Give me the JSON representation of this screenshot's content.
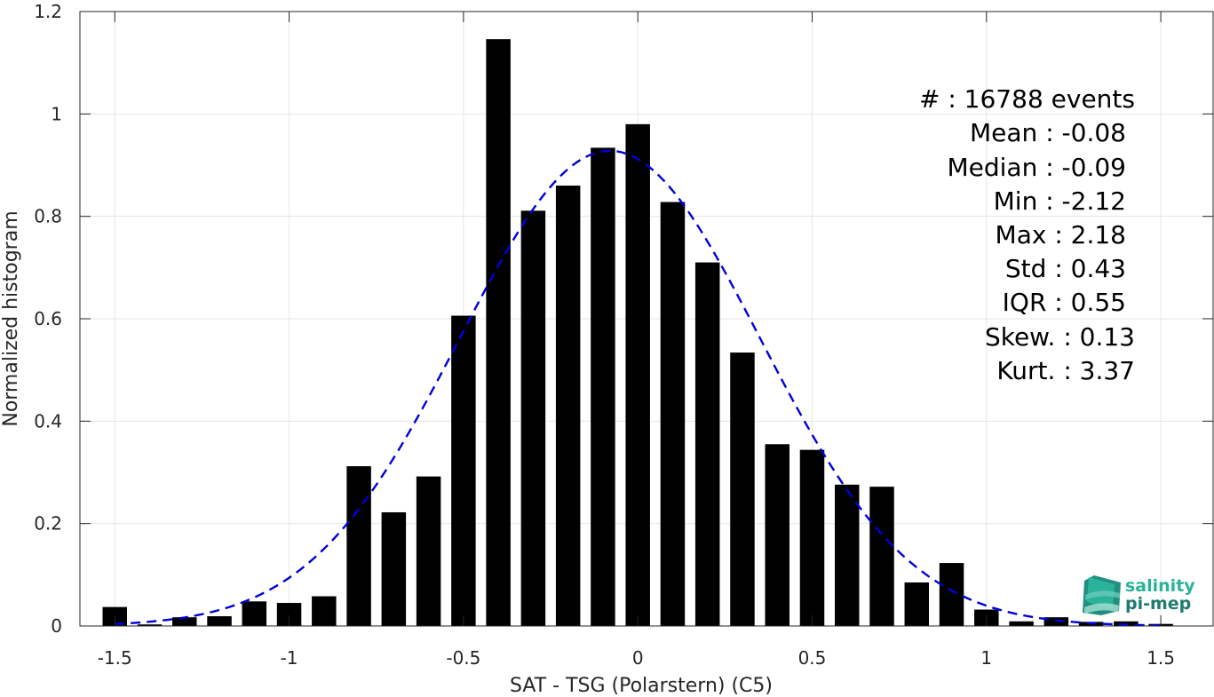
{
  "chart_data": {
    "type": "bar",
    "xlabel": "SAT - TSG (Polarstern) (C5)",
    "ylabel": "Normalized histogram",
    "xlim": [
      -1.6,
      1.65
    ],
    "ylim": [
      0,
      1.2
    ],
    "xticks": [
      -1.5,
      -1,
      -0.5,
      0,
      0.5,
      1,
      1.5
    ],
    "xtick_labels": [
      "-1.5",
      "-1",
      "-0.5",
      "0",
      "0.5",
      "1",
      "1.5"
    ],
    "yticks": [
      0,
      0.2,
      0.4,
      0.6,
      0.8,
      1,
      1.2
    ],
    "ytick_labels": [
      "0",
      "0.2",
      "0.4",
      "0.6",
      "0.8",
      "1",
      "1.2"
    ],
    "grid": true,
    "bar_width": 0.07,
    "bar_color": "#000000",
    "bars": {
      "x": [
        -1.5,
        -1.4,
        -1.3,
        -1.2,
        -1.1,
        -1.0,
        -0.9,
        -0.8,
        -0.7,
        -0.6,
        -0.5,
        -0.4,
        -0.3,
        -0.2,
        -0.1,
        0.0,
        0.1,
        0.2,
        0.3,
        0.4,
        0.5,
        0.6,
        0.7,
        0.8,
        0.9,
        1.0,
        1.1,
        1.2,
        1.3,
        1.4,
        1.5
      ],
      "values": [
        0.037,
        0.003,
        0.017,
        0.019,
        0.048,
        0.045,
        0.058,
        0.312,
        0.222,
        0.292,
        0.606,
        1.146,
        0.811,
        0.86,
        0.934,
        0.98,
        0.828,
        0.71,
        0.534,
        0.355,
        0.344,
        0.276,
        0.272,
        0.085,
        0.123,
        0.032,
        0.009,
        0.017,
        0.008,
        0.009,
        0.004
      ]
    },
    "fit_curve": {
      "style": "dashed",
      "color": "#0000dd",
      "mean": -0.08,
      "std": 0.43,
      "peak": 0.928,
      "x_range": [
        -1.5,
        1.5
      ]
    },
    "annotations": [
      "#  : 16788 events",
      "Mean : -0.08",
      "Median : -0.09",
      "Min : -2.12",
      "Max : 2.18",
      "Std : 0.43",
      "IQR : 0.55",
      "Skew. : 0.13",
      "Kurt. : 3.37"
    ],
    "logo": {
      "line1": "salinity",
      "line2": "pi-mep",
      "color1": "#29b39a",
      "color2": "#1f7a6f"
    }
  }
}
